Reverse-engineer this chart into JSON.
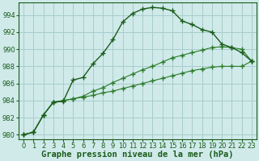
{
  "title": "Graphe pression niveau de la mer (hPa)",
  "background_color": "#d0eaea",
  "grid_color": "#a8cccc",
  "line_color_dark": "#1a5c1a",
  "line_color_mid": "#2a7a2a",
  "xlim": [
    -0.5,
    23.5
  ],
  "ylim": [
    979.5,
    995.5
  ],
  "yticks": [
    980,
    982,
    984,
    986,
    988,
    990,
    992,
    994
  ],
  "xticks": [
    0,
    1,
    2,
    3,
    4,
    5,
    6,
    7,
    8,
    9,
    10,
    11,
    12,
    13,
    14,
    15,
    16,
    17,
    18,
    19,
    20,
    21,
    22,
    23
  ],
  "series1": [
    980.0,
    980.3,
    982.3,
    983.8,
    983.9,
    986.4,
    986.7,
    988.3,
    989.5,
    991.1,
    993.2,
    994.2,
    994.7,
    994.9,
    994.8,
    994.5,
    993.3,
    992.9,
    992.3,
    992.0,
    990.6,
    990.2,
    989.6,
    988.6
  ],
  "series2": [
    980.0,
    980.3,
    982.3,
    983.8,
    984.0,
    984.2,
    984.5,
    985.1,
    985.5,
    986.1,
    986.6,
    987.1,
    987.6,
    988.0,
    988.5,
    989.0,
    989.3,
    989.6,
    989.9,
    990.2,
    990.3,
    990.2,
    990.0,
    988.6
  ],
  "series3": [
    980.0,
    980.3,
    982.3,
    983.8,
    984.0,
    984.2,
    984.4,
    984.6,
    984.9,
    985.1,
    985.4,
    985.7,
    986.0,
    986.3,
    986.6,
    986.9,
    987.2,
    987.5,
    987.7,
    987.9,
    988.0,
    988.0,
    988.0,
    988.6
  ],
  "tick_fontsize": 6.0,
  "xlabel_fontsize": 7.5
}
